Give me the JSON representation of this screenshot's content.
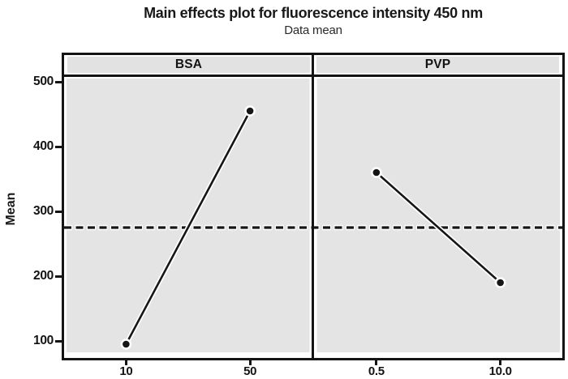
{
  "chart_data": {
    "type": "line",
    "variant": "main-effects-plot",
    "title": "Main effects plot for fluorescence intensity 450 nm",
    "subtitle": "Data mean",
    "ylabel": "Mean",
    "ylim": [
      70,
      510
    ],
    "yticks": [
      500,
      400,
      300,
      200,
      100
    ],
    "grand_mean": 275,
    "reference_line": {
      "value": 275,
      "style": "dashed"
    },
    "panels": [
      {
        "label": "BSA",
        "categories": [
          "10",
          "50"
        ],
        "values": [
          95,
          455
        ]
      },
      {
        "label": "PVP",
        "categories": [
          "0.5",
          "10.0"
        ],
        "values": [
          360,
          190
        ]
      }
    ],
    "grid": false,
    "legend_position": "none",
    "marker": "circle",
    "colors": {
      "ink": "#161616",
      "frame": "#141414",
      "panel_bg": "#e4e4e4",
      "header_bg": "#e2e2e2",
      "halo": "#ffffff",
      "background": "#ffffff"
    }
  }
}
